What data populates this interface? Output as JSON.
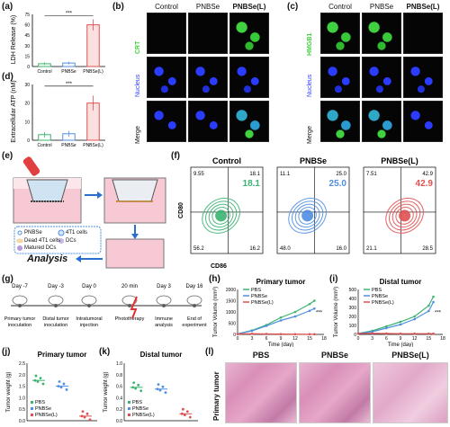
{
  "panel_labels": {
    "a": "(a)",
    "b": "(b)",
    "c": "(c)",
    "d": "(d)",
    "e": "(e)",
    "f": "(f)",
    "g": "(g)",
    "h": "(h)",
    "i": "(i)",
    "j": "(j)",
    "k": "(k)",
    "l": "(l)"
  },
  "colors": {
    "control": "#3cb371",
    "pnbse": "#4f8fe0",
    "pnbsel": "#e05050",
    "crt": "#3fd13f",
    "nucleus": "#2a3cff"
  },
  "chart_a": {
    "ylabel": "LDH Release (%)",
    "categories": [
      "Control",
      "PNBSe",
      "PNBSe(L)"
    ],
    "values": [
      4,
      5,
      60
    ],
    "errors": [
      2,
      2,
      8
    ],
    "ylim": [
      0,
      75
    ],
    "yticks": [
      "0",
      "15",
      "30",
      "45",
      "60",
      "75"
    ],
    "sig": "***"
  },
  "chart_d": {
    "ylabel": "Extracellular ATP (nM)",
    "categories": [
      "Control",
      "PNBSe",
      "PNBSe(L)"
    ],
    "values": [
      3,
      3.5,
      20
    ],
    "errors": [
      1.5,
      1.5,
      4
    ],
    "ylim": [
      0,
      30
    ],
    "yticks": [
      "0",
      "10",
      "20",
      "30"
    ],
    "sig": "***"
  },
  "panel_b": {
    "cols": [
      "Control",
      "PNBSe",
      "PNBSe(L)"
    ],
    "rows": [
      "CRT",
      "Nucleus",
      "Merge"
    ]
  },
  "panel_c": {
    "cols": [
      "Control",
      "PNBSe",
      "PNBSe(L)"
    ],
    "rows": [
      "HMGB1",
      "Nucleus",
      "Merge"
    ]
  },
  "panel_e": {
    "legend": [
      "PNBSe",
      "4T1 cells",
      "Dead 4T1 cells",
      "DCs",
      "Matured DCs"
    ],
    "analysis": "Analysis"
  },
  "panel_f": {
    "titles": [
      "Control",
      "PNBSe",
      "PNBSe(L)"
    ],
    "xlabel": "CD86",
    "ylabel": "CD80",
    "quadrants": [
      {
        "ul": "9.55",
        "ur": "18.1",
        "ll": "56.2",
        "lr": "16.2",
        "big": "18.1"
      },
      {
        "ul": "11.1",
        "ur": "25.0",
        "ll": "48.0",
        "lr": "16.0",
        "big": "25.0"
      },
      {
        "ul": "7.51",
        "ur": "42.9",
        "ll": "21.1",
        "lr": "28.5",
        "big": "42.9"
      }
    ]
  },
  "panel_g": {
    "days": [
      "Day -7",
      "Day -3",
      "Day 0",
      "20 min",
      "Day 3",
      "Day 16"
    ],
    "events": [
      "Primary tumor inoculation",
      "Distal tumor inoculation",
      "Intratumoral injection",
      "Phototherapy",
      "Immune analysis",
      "End of experiment"
    ]
  },
  "chart_data": [
    {
      "type": "line",
      "title": "Primary tumor",
      "xlabel": "Time (day)",
      "ylabel": "Tumor Volume (mm³)",
      "x": [
        0,
        3,
        6,
        9,
        12,
        15,
        16
      ],
      "series": [
        {
          "name": "PBS",
          "values": [
            20,
            180,
            420,
            750,
            1000,
            1350,
            1500
          ]
        },
        {
          "name": "PNBSe",
          "values": [
            20,
            160,
            380,
            620,
            800,
            1050,
            1150
          ]
        },
        {
          "name": "PNBSe(L)",
          "values": [
            20,
            30,
            20,
            15,
            10,
            8,
            8
          ]
        }
      ],
      "xticks": [
        "0",
        "3",
        "6",
        "9",
        "12",
        "15",
        "18"
      ],
      "yticks": [
        "0",
        "500",
        "1000",
        "1500",
        "2000"
      ],
      "ylim": [
        0,
        2000
      ],
      "xlim": [
        0,
        18
      ],
      "sig": "***"
    },
    {
      "type": "line",
      "title": "Distal tumor",
      "xlabel": "Time (day)",
      "ylabel": "Tumor Volume (mm³)",
      "x": [
        0,
        3,
        6,
        9,
        12,
        15,
        16
      ],
      "series": [
        {
          "name": "PBS",
          "values": [
            10,
            40,
            90,
            140,
            200,
            320,
            420
          ]
        },
        {
          "name": "PNBSe",
          "values": [
            10,
            30,
            70,
            110,
            170,
            260,
            360
          ]
        },
        {
          "name": "PNBSe(L)",
          "values": [
            10,
            12,
            10,
            8,
            8,
            8,
            8
          ]
        }
      ],
      "xticks": [
        "0",
        "3",
        "6",
        "9",
        "12",
        "15",
        "18"
      ],
      "yticks": [
        "0",
        "100",
        "200",
        "300",
        "400",
        "500"
      ],
      "ylim": [
        0,
        500
      ],
      "xlim": [
        0,
        18
      ],
      "sig": "***"
    },
    {
      "type": "scatter",
      "title": "Primary tumor",
      "ylabel": "Tumor weight (g)",
      "categories": [
        "PBS",
        "PNBSe",
        "PNBSe(L)"
      ],
      "means": [
        1.75,
        1.5,
        0.2
      ],
      "yticks": [
        "0.0",
        "0.5",
        "1.0",
        "1.5",
        "2.0",
        "2.5"
      ],
      "ylim": [
        0,
        2.5
      ]
    },
    {
      "type": "scatter",
      "title": "Distal tumor",
      "ylabel": "Tumor weight (g)",
      "categories": [
        "PBS",
        "PNBSe",
        "PNBSe(L)"
      ],
      "means": [
        0.58,
        0.55,
        0.12
      ],
      "yticks": [
        "0.0",
        "0.2",
        "0.4",
        "0.6",
        "0.8",
        "1.0"
      ],
      "ylim": [
        0,
        1.0
      ]
    }
  ],
  "panel_l": {
    "cols": [
      "PBS",
      "PNBSe",
      "PNBSe(L)"
    ],
    "rowlabel": "Primary tumor"
  }
}
